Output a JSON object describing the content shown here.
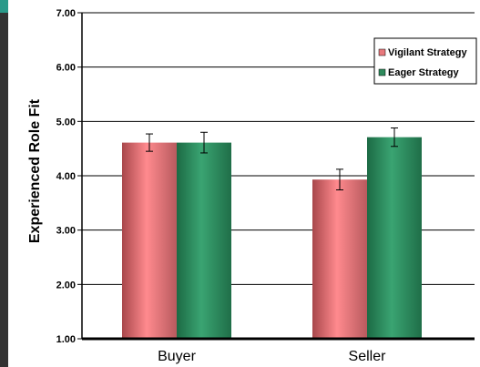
{
  "chart_data": {
    "type": "bar",
    "title": "",
    "xlabel": "",
    "ylabel": "Experienced Role Fit",
    "ylim": [
      1.0,
      7.0
    ],
    "yticks": [
      "1.00",
      "2.00",
      "3.00",
      "4.00",
      "5.00",
      "6.00",
      "7.00"
    ],
    "categories": [
      "Buyer",
      "Seller"
    ],
    "series": [
      {
        "name": "Vigilant Strategy",
        "values": [
          4.61,
          3.93
        ],
        "errors": [
          0.16,
          0.19
        ],
        "color": "#e8787c"
      },
      {
        "name": "Eager Strategy",
        "values": [
          4.61,
          4.71
        ],
        "errors": [
          0.19,
          0.17
        ],
        "color": "#2e8a5c"
      }
    ],
    "grid": true,
    "legend": "top-right"
  },
  "colors": {
    "strip_dark": "#333333",
    "strip_accent": "#2a9a8a"
  }
}
